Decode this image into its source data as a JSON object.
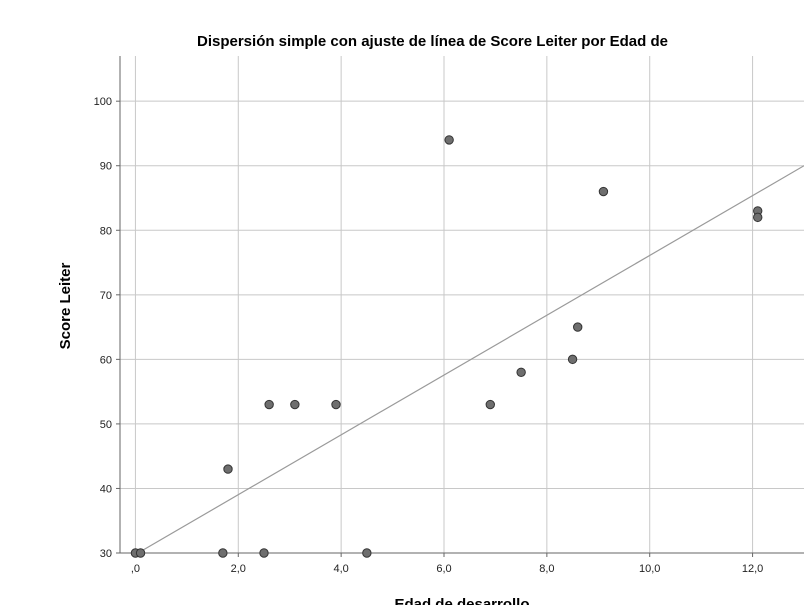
{
  "chart_data": {
    "type": "scatter",
    "title": "Dispersión simple con ajuste de línea de Score Leiter por Edad de",
    "xlabel": "Edad de desarrollo",
    "ylabel": "Score Leiter",
    "xlim": [
      -0.3,
      13.0
    ],
    "ylim": [
      30,
      107
    ],
    "x_ticks": [
      0,
      2,
      4,
      6,
      8,
      10,
      12
    ],
    "x_tick_labels": [
      ",0",
      "2,0",
      "4,0",
      "6,0",
      "8,0",
      "10,0",
      "12,0"
    ],
    "y_ticks": [
      30,
      40,
      50,
      60,
      70,
      80,
      90,
      100
    ],
    "y_tick_labels": [
      "30",
      "40",
      "50",
      "60",
      "70",
      "80",
      "90",
      "100"
    ],
    "grid": true,
    "points": [
      {
        "x": 0.0,
        "y": 30
      },
      {
        "x": 0.1,
        "y": 30
      },
      {
        "x": 1.7,
        "y": 30
      },
      {
        "x": 2.5,
        "y": 30
      },
      {
        "x": 4.5,
        "y": 30
      },
      {
        "x": 1.8,
        "y": 43
      },
      {
        "x": 2.6,
        "y": 53
      },
      {
        "x": 3.1,
        "y": 53
      },
      {
        "x": 3.9,
        "y": 53
      },
      {
        "x": 6.1,
        "y": 94
      },
      {
        "x": 6.9,
        "y": 53
      },
      {
        "x": 7.5,
        "y": 58
      },
      {
        "x": 8.5,
        "y": 60
      },
      {
        "x": 8.6,
        "y": 65
      },
      {
        "x": 9.1,
        "y": 86
      },
      {
        "x": 12.1,
        "y": 83
      },
      {
        "x": 12.1,
        "y": 82
      }
    ],
    "fit_line": {
      "x": [
        0.05,
        13.0
      ],
      "y": [
        30,
        90
      ]
    },
    "colors": {
      "point_fill": "#6e6e6e",
      "point_stroke": "#333333",
      "grid": "#c8c8c8",
      "fit_line": "#9a9a9a",
      "axis": "#666666"
    }
  }
}
